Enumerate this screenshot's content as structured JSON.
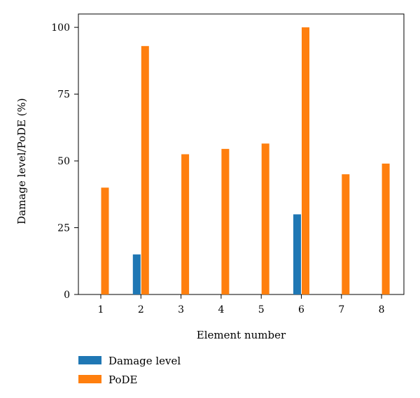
{
  "chart_data": {
    "type": "bar",
    "title": "",
    "xlabel": "Element number",
    "ylabel": "Damage level/PoDE (%)",
    "categories": [
      "1",
      "2",
      "3",
      "4",
      "5",
      "6",
      "7",
      "8"
    ],
    "ylim": [
      0,
      105
    ],
    "yticks": [
      0,
      25,
      50,
      75,
      100
    ],
    "grid": false,
    "legend_position": "bottom-left",
    "series": [
      {
        "name": "Damage level",
        "color": "#1f77b4",
        "values": [
          0,
          15,
          0,
          0,
          0,
          30,
          0,
          0
        ]
      },
      {
        "name": "PoDE",
        "color": "#ff7f0e",
        "values": [
          40,
          93,
          52.5,
          54.5,
          56.5,
          100,
          45,
          49
        ]
      }
    ]
  }
}
